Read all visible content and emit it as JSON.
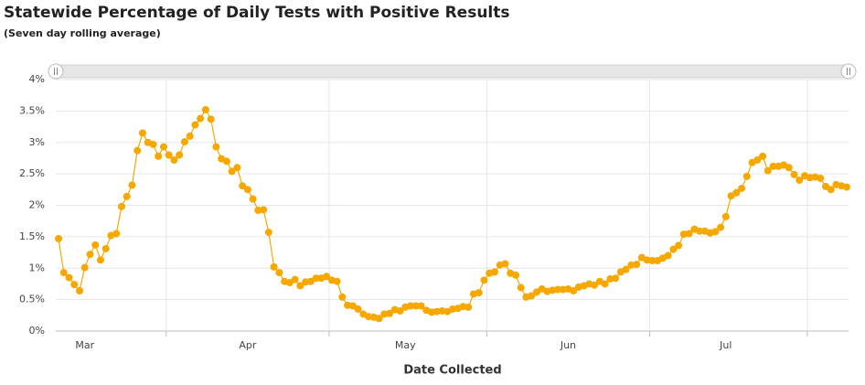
{
  "chart_data": {
    "type": "line",
    "title": "Statewide Percentage of Daily Tests with Positive Results",
    "subtitle": "(Seven day rolling average)",
    "x_label": "Date Collected",
    "color": "#f7a800",
    "grid": true,
    "categories": [
      null,
      null,
      null,
      null,
      null,
      "Mar",
      null,
      null,
      null,
      null,
      null,
      null,
      null,
      null,
      null,
      null,
      null,
      null,
      null,
      null,
      null,
      null,
      null,
      null,
      null,
      null,
      null,
      null,
      null,
      null,
      null,
      null,
      null,
      null,
      null,
      null,
      "Apr",
      null,
      null,
      null,
      null,
      null,
      null,
      null,
      null,
      null,
      null,
      null,
      null,
      null,
      null,
      null,
      null,
      null,
      null,
      null,
      null,
      null,
      null,
      null,
      null,
      null,
      null,
      null,
      null,
      null,
      "May",
      null,
      null,
      null,
      null,
      null,
      null,
      null,
      null,
      null,
      null,
      null,
      null,
      null,
      null,
      null,
      null,
      null,
      null,
      null,
      null,
      null,
      null,
      null,
      null,
      null,
      null,
      null,
      null,
      null,
      null,
      "Jun",
      null,
      null,
      null,
      null,
      null,
      null,
      null,
      null,
      null,
      null,
      null,
      null,
      null,
      null,
      null,
      null,
      null,
      null,
      null,
      null,
      null,
      null,
      null,
      null,
      null,
      null,
      null,
      null,
      null,
      "Jul",
      null,
      null,
      null,
      null,
      null,
      null,
      null,
      null,
      null,
      null,
      null,
      null,
      null,
      null,
      null,
      null,
      null,
      null,
      null,
      null,
      null,
      null,
      null
    ],
    "values": [
      1.47,
      0.93,
      0.85,
      0.74,
      0.64,
      1.01,
      1.22,
      1.37,
      1.13,
      1.31,
      1.52,
      1.55,
      1.98,
      2.14,
      2.32,
      2.87,
      3.15,
      3.0,
      2.97,
      2.78,
      2.93,
      2.8,
      2.72,
      2.8,
      3.01,
      3.1,
      3.28,
      3.38,
      3.52,
      3.37,
      2.93,
      2.74,
      2.7,
      2.54,
      2.6,
      2.31,
      2.25,
      2.1,
      1.92,
      1.93,
      1.57,
      1.02,
      0.93,
      0.79,
      0.77,
      0.82,
      0.72,
      0.78,
      0.79,
      0.84,
      0.84,
      0.87,
      0.81,
      0.79,
      0.54,
      0.41,
      0.4,
      0.35,
      0.27,
      0.23,
      0.22,
      0.2,
      0.27,
      0.28,
      0.34,
      0.32,
      0.38,
      0.4,
      0.4,
      0.4,
      0.33,
      0.3,
      0.31,
      0.32,
      0.31,
      0.35,
      0.36,
      0.39,
      0.38,
      0.59,
      0.61,
      0.81,
      0.92,
      0.94,
      1.05,
      1.07,
      0.92,
      0.89,
      0.69,
      0.54,
      0.56,
      0.62,
      0.67,
      0.63,
      0.65,
      0.66,
      0.66,
      0.67,
      0.64,
      0.7,
      0.72,
      0.75,
      0.73,
      0.79,
      0.75,
      0.83,
      0.84,
      0.94,
      0.98,
      1.05,
      1.06,
      1.17,
      1.13,
      1.12,
      1.12,
      1.16,
      1.2,
      1.3,
      1.36,
      1.54,
      1.55,
      1.62,
      1.59,
      1.59,
      1.56,
      1.58,
      1.65,
      1.82,
      2.15,
      2.2,
      2.27,
      2.46,
      2.68,
      2.72,
      2.78,
      2.55,
      2.62,
      2.62,
      2.64,
      2.6,
      2.49,
      2.4,
      2.47,
      2.44,
      2.45,
      2.43,
      2.3,
      2.25,
      2.33,
      2.31,
      2.29
    ],
    "ylim": [
      0,
      4
    ],
    "yticks": [
      {
        "value": 0,
        "label": "0%"
      },
      {
        "value": 0.5,
        "label": "0.5%"
      },
      {
        "value": 1,
        "label": "1%"
      },
      {
        "value": 1.5,
        "label": "1.5%"
      },
      {
        "value": 2,
        "label": "2%"
      },
      {
        "value": 2.5,
        "label": "2.5%"
      },
      {
        "value": 3,
        "label": "3%"
      },
      {
        "value": 3.5,
        "label": "3.5%"
      },
      {
        "value": 4,
        "label": "4%"
      }
    ]
  }
}
